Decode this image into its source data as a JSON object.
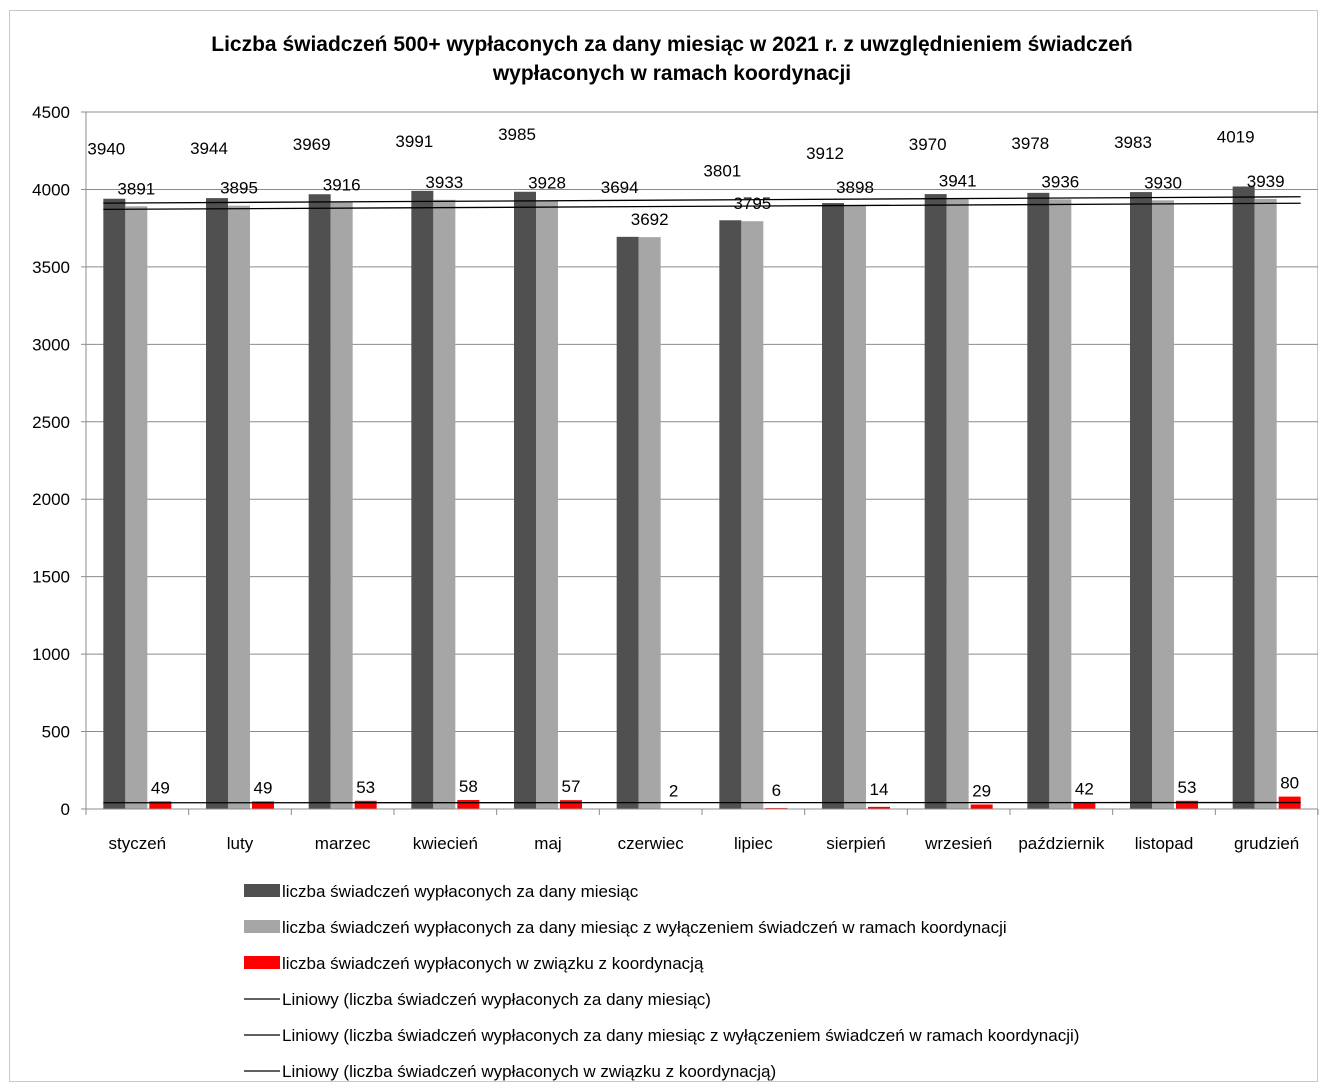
{
  "chart_data": {
    "type": "bar",
    "title_line1": "Liczba świadczeń 500+ wypłaconych za dany miesiąc w 2021 r. z uwzględnieniem świadczeń",
    "title_line2": "wypłaconych w ramach koordynacji",
    "categories": [
      "styczeń",
      "luty",
      "marzec",
      "kwiecień",
      "maj",
      "czerwiec",
      "lipiec",
      "sierpień",
      "wrzesień",
      "październik",
      "listopad",
      "grudzień"
    ],
    "ylim": [
      0,
      4500
    ],
    "yticks": [
      0,
      500,
      1000,
      1500,
      2000,
      2500,
      3000,
      3500,
      4000,
      4500
    ],
    "grid": true,
    "legend_position": "bottom",
    "series": [
      {
        "name": "liczba świadczeń wypłaconych za dany miesiąc",
        "color": "#505050",
        "values": [
          3940,
          3944,
          3969,
          3991,
          3985,
          3694,
          3801,
          3912,
          3970,
          3978,
          3983,
          4019
        ]
      },
      {
        "name": "liczba świadczeń wypłaconych za dany miesiąc z wyłączeniem świadczeń w ramach koordynacji",
        "color": "#a6a6a6",
        "values": [
          3891,
          3895,
          3916,
          3933,
          3928,
          3692,
          3795,
          3898,
          3941,
          3936,
          3930,
          3939
        ]
      },
      {
        "name": "liczba świadczeń wypłaconych w związku z koordynacją",
        "color": "#ff0000",
        "values": [
          49,
          49,
          53,
          58,
          57,
          2,
          6,
          14,
          29,
          42,
          53,
          80
        ]
      }
    ],
    "trendlines": [
      {
        "name": "Liniowy (liczba świadczeń wypłaconych za dany miesiąc)",
        "color": "#000000"
      },
      {
        "name": "Liniowy (liczba świadczeń wypłaconych za dany miesiąc z wyłączeniem świadczeń w ramach koordynacji)",
        "color": "#000000"
      },
      {
        "name": "Liniowy (liczba świadczeń wypłaconych w związku z koordynacją)",
        "color": "#000000"
      }
    ]
  }
}
